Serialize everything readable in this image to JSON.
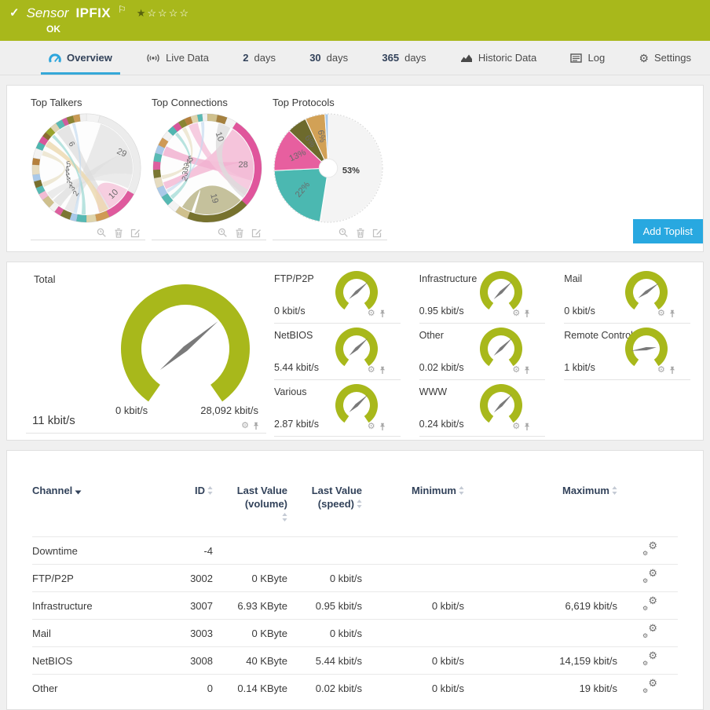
{
  "accent": {
    "green": "#a8b81b",
    "blue": "#28a8e0",
    "navy": "#32425a"
  },
  "header": {
    "check_icon": "check-icon",
    "kicker": "Sensor",
    "title": "IPFIX",
    "flag_icon": "flag-icon",
    "status": "OK",
    "stars_filled": 1,
    "stars_total": 5
  },
  "tabs": [
    {
      "label": "Overview",
      "icon": "gauge-icon",
      "active": true
    },
    {
      "label": "Live Data",
      "icon": "live-icon",
      "active": false
    },
    {
      "prefix": "2",
      "label": "days",
      "active": false
    },
    {
      "prefix": "30",
      "label": "days",
      "active": false
    },
    {
      "prefix": "365",
      "label": "days",
      "active": false
    },
    {
      "label": "Historic Data",
      "icon": "historic-icon",
      "active": false
    },
    {
      "label": "Log",
      "icon": "log-icon",
      "active": false
    },
    {
      "label": "Settings",
      "icon": "settings-icon",
      "active": false
    }
  ],
  "toplists": {
    "add_button": "Add Toplist",
    "actions": [
      "zoom-toplist",
      "delete-toplist",
      "edit-toplist"
    ]
  },
  "gauges": {
    "total": {
      "label": "Total",
      "value": "11 kbit/s",
      "min": "0 kbit/s",
      "max": "28,092 kbit/s",
      "needle_deg": 50
    },
    "channels": [
      {
        "label": "FTP/P2P",
        "value": "0 kbit/s",
        "needle_deg": 48
      },
      {
        "label": "Infrastructure",
        "value": "0.95 kbit/s",
        "needle_deg": 46
      },
      {
        "label": "Mail",
        "value": "0 kbit/s",
        "needle_deg": 54
      },
      {
        "label": "NetBIOS",
        "value": "5.44 kbit/s",
        "needle_deg": 47
      },
      {
        "label": "Other",
        "value": "0.02 kbit/s",
        "needle_deg": 46
      },
      {
        "label": "Remote Control",
        "value": "1 kbit/s",
        "needle_deg": 262
      },
      {
        "label": "Various",
        "value": "2.87 kbit/s",
        "needle_deg": 47
      },
      {
        "label": "WWW",
        "value": "0.24 kbit/s",
        "needle_deg": 45
      }
    ]
  },
  "table": {
    "columns": [
      {
        "l1": "Channel",
        "sort": "down"
      },
      {
        "l1": "ID",
        "sort": "both"
      },
      {
        "l1": "Last Value",
        "l2": "(volume)",
        "sort": "both-below"
      },
      {
        "l1": "Last Value",
        "l2": "(speed)",
        "sort": "both"
      },
      {
        "l1": "Minimum",
        "sort": "both"
      },
      {
        "l1": "Maximum",
        "sort": "both"
      },
      {
        "l1": "",
        "sort": null
      }
    ],
    "rows": [
      {
        "channel": "Downtime",
        "id": "-4",
        "lv_volume": "",
        "lv_speed": "",
        "min": "",
        "max": ""
      },
      {
        "channel": "FTP/P2P",
        "id": "3002",
        "lv_volume": "0 KByte",
        "lv_speed": "0 kbit/s",
        "min": "",
        "max": ""
      },
      {
        "channel": "Infrastructure",
        "id": "3007",
        "lv_volume": "6.93 KByte",
        "lv_speed": "0.95 kbit/s",
        "min": "0 kbit/s",
        "max": "6,619 kbit/s"
      },
      {
        "channel": "Mail",
        "id": "3003",
        "lv_volume": "0 KByte",
        "lv_speed": "0 kbit/s",
        "min": "",
        "max": ""
      },
      {
        "channel": "NetBIOS",
        "id": "3008",
        "lv_volume": "40 KByte",
        "lv_speed": "5.44 kbit/s",
        "min": "0 kbit/s",
        "max": "14,159 kbit/s"
      },
      {
        "channel": "Other",
        "id": "0",
        "lv_volume": "0.14 KByte",
        "lv_speed": "0.02 kbit/s",
        "min": "0 kbit/s",
        "max": "19 kbit/s"
      }
    ]
  },
  "chart_data": [
    {
      "type": "chord",
      "title": "Top Talkers",
      "segments": [
        [
          4,
          "#f3f3f3"
        ],
        [
          29,
          "#ececec"
        ],
        [
          10,
          "#df5a9d"
        ],
        [
          4,
          "#cf9a55"
        ],
        [
          3,
          "#dfd4ab"
        ],
        [
          3,
          "#56b9b3"
        ],
        [
          2,
          "#a9c9e9"
        ],
        [
          3,
          "#7b7733"
        ],
        [
          2,
          "#dd5f9f"
        ],
        [
          2,
          "#f3f3f3"
        ],
        [
          3,
          "#cfc08d"
        ],
        [
          2,
          "#f2bcd4"
        ],
        [
          2,
          "#57bab4"
        ],
        [
          2,
          "#786f2d"
        ],
        [
          2,
          "#a9c9e9"
        ],
        [
          3,
          "#e6dcc0"
        ],
        [
          2,
          "#b5803c"
        ],
        [
          3,
          "#f3f3f3"
        ],
        [
          2,
          "#4fb6b0"
        ],
        [
          2,
          "#d8569b"
        ],
        [
          1.5,
          "#8a6b2f"
        ],
        [
          2,
          "#99a32c"
        ],
        [
          2,
          "#e0d5b5"
        ],
        [
          2,
          "#5ab9b3"
        ],
        [
          1.5,
          "#d05d9d"
        ],
        [
          2,
          "#8a8433"
        ],
        [
          2,
          "#c89a55"
        ],
        [
          2,
          "#f0f0f0"
        ]
      ],
      "ribbons": [
        {
          "a": [
            18,
            68,
            196,
            208
          ],
          "c": "#e3e3e3",
          "o": 0.8
        },
        {
          "a": [
            68,
            98,
            214,
            226
          ],
          "c": "#dedede",
          "o": 0.8
        },
        {
          "a": [
            98,
            116,
            228,
            238
          ],
          "c": "#e6e6e6",
          "o": 0.8
        },
        {
          "a": [
            320,
            338,
            148,
            158
          ],
          "c": "#dcdcdc",
          "o": 0.75
        },
        {
          "a": [
            118,
            150,
            152,
            164
          ],
          "c": "#f5c9dd",
          "o": 0.9
        },
        {
          "a": [
            152,
            163,
            298,
            306
          ],
          "c": "#ecd9b2",
          "o": 0.85
        },
        {
          "a": [
            181,
            186,
            312,
            316
          ],
          "c": "#93d6d0",
          "o": 0.65
        },
        {
          "a": [
            192,
            196,
            342,
            346
          ],
          "c": "#c3daf0",
          "o": 0.65
        },
        {
          "a": [
            246,
            252,
            286,
            292
          ],
          "c": "#e6ddc0",
          "o": 0.65
        }
      ],
      "labels": [
        {
          "t": "29",
          "d": 66,
          "r": 0.8,
          "rot": 25
        },
        {
          "t": "10",
          "d": 134,
          "r": 0.76,
          "rot": -45
        },
        {
          "t": "6",
          "d": 330,
          "r": 0.58,
          "rot": 60
        },
        {
          "t": "2",
          "d": 204,
          "r": 0.56,
          "rot": -55
        },
        {
          "t": "3",
          "d": 217,
          "r": 0.5,
          "rot": -50
        },
        {
          "t": "3",
          "d": 230,
          "r": 0.46,
          "rot": -45
        },
        {
          "t": "4",
          "d": 243,
          "r": 0.43,
          "rot": -40
        },
        {
          "t": "4",
          "d": 256,
          "r": 0.41,
          "rot": -30
        },
        {
          "t": "4",
          "d": 269,
          "r": 0.4,
          "rot": -20
        },
        {
          "t": "5",
          "d": 284,
          "r": 0.38,
          "rot": -10
        }
      ]
    },
    {
      "type": "chord",
      "title": "Top Connections",
      "segments": [
        [
          3,
          "#cfc08d"
        ],
        [
          3,
          "#a5813f"
        ],
        [
          3,
          "#f3f3f3"
        ],
        [
          28,
          "#e0559c"
        ],
        [
          19,
          "#77722e"
        ],
        [
          4,
          "#cfc08d"
        ],
        [
          3,
          "#f3f3f3"
        ],
        [
          3,
          "#56b9b3"
        ],
        [
          3,
          "#a9c9e9"
        ],
        [
          3,
          "#e6dcc0"
        ],
        [
          2.5,
          "#7b7733"
        ],
        [
          2.5,
          "#dd5f9f"
        ],
        [
          2.5,
          "#57bab4"
        ],
        [
          2.5,
          "#a9c9e9"
        ],
        [
          2.5,
          "#cf9a55"
        ],
        [
          2.5,
          "#f3f3f3"
        ],
        [
          2,
          "#4fb6b0"
        ],
        [
          2,
          "#d8569b"
        ],
        [
          2,
          "#8a8433"
        ],
        [
          2,
          "#b5803c"
        ],
        [
          2,
          "#dfd4ab"
        ],
        [
          1.5,
          "#5ab9b3"
        ],
        [
          1.5,
          "#f0f0f0"
        ]
      ],
      "ribbons": [
        {
          "a": [
            33,
            80,
            243,
            252
          ],
          "c": "#f3bad5",
          "o": 0.85
        },
        {
          "a": [
            80,
            106,
            286,
            298
          ],
          "c": "#f1b1d0",
          "o": 0.85
        },
        {
          "a": [
            106,
            126,
            336,
            348
          ],
          "c": "#f5c3da",
          "o": 0.85
        },
        {
          "a": [
            134,
            196,
            200,
            213
          ],
          "c": "#a8a268",
          "o": 0.65
        },
        {
          "a": [
            14,
            30,
            118,
            130
          ],
          "c": "#dcdcdc",
          "o": 0.8
        },
        {
          "a": [
            228,
            233,
            316,
            320
          ],
          "c": "#93d6d0",
          "o": 0.65
        },
        {
          "a": [
            238,
            242,
            352,
            356
          ],
          "c": "#c3daf0",
          "o": 0.65
        },
        {
          "a": [
            256,
            261,
            327,
            332
          ],
          "c": "#e6ddc0",
          "o": 0.65
        }
      ],
      "labels": [
        {
          "t": "28",
          "d": 84,
          "r": 0.74,
          "rot": 0
        },
        {
          "t": "19",
          "d": 166,
          "r": 0.64,
          "rot": 75
        },
        {
          "t": "10",
          "d": 22,
          "r": 0.7,
          "rot": 70
        },
        {
          "t": "2",
          "d": 246,
          "r": 0.52,
          "rot": -60
        },
        {
          "t": "3",
          "d": 257,
          "r": 0.48,
          "rot": -55
        },
        {
          "t": "3",
          "d": 267,
          "r": 0.46,
          "rot": -50
        },
        {
          "t": "3",
          "d": 278,
          "r": 0.44,
          "rot": -45
        },
        {
          "t": "4",
          "d": 289,
          "r": 0.42,
          "rot": -35
        },
        {
          "t": "5",
          "d": 300,
          "r": 0.4,
          "rot": -25
        }
      ]
    },
    {
      "type": "pie",
      "title": "Top Protocols",
      "values": [
        53,
        22,
        13,
        6,
        6,
        1
      ],
      "slice_labels": [
        "53%",
        "22%",
        "13%",
        "6%",
        "6%",
        ""
      ],
      "colors": [
        "#f4f4f4",
        "#4bb8b1",
        "#e75f9f",
        "#6d6a2d",
        "#d2a156",
        "#a9c9e9"
      ],
      "hole": 0.17,
      "labels": [
        {
          "t": "53%",
          "d": 95,
          "r": 0.42,
          "rot": 0,
          "b": true
        },
        {
          "t": "22%",
          "d": 231,
          "r": 0.62,
          "rot": -50
        },
        {
          "t": "13%",
          "d": 293,
          "r": 0.62,
          "rot": -25
        },
        {
          "t": "6%",
          "d": 327,
          "r": 0.6,
          "rot": 55
        },
        {
          "t": "6%",
          "d": 349,
          "r": 0.6,
          "rot": 80
        }
      ]
    },
    {
      "type": "gauge",
      "title": "Total",
      "value": 11,
      "unit": "kbit/s",
      "min": 0,
      "max": 28092
    },
    {
      "type": "gauge-grid",
      "unit": "kbit/s",
      "titles": [
        "FTP/P2P",
        "Infrastructure",
        "Mail",
        "NetBIOS",
        "Other",
        "Remote Control",
        "Various",
        "WWW"
      ],
      "values": [
        0,
        0.95,
        0,
        5.44,
        0.02,
        1,
        2.87,
        0.24
      ]
    }
  ]
}
